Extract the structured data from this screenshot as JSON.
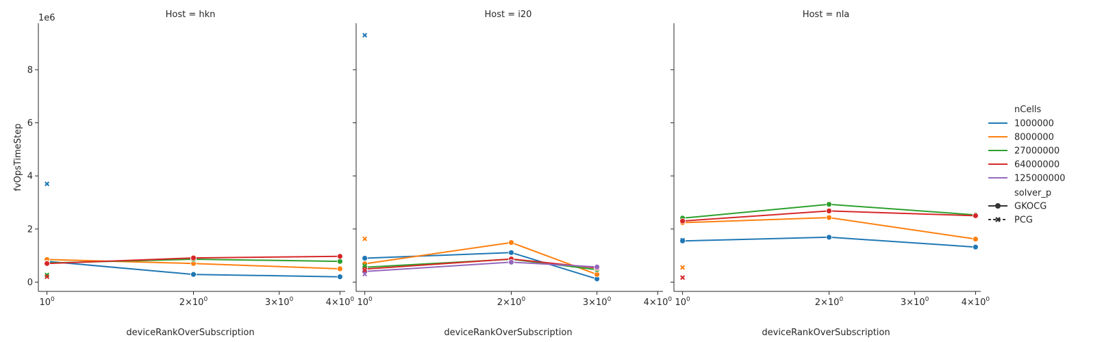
{
  "figure": {
    "offset_label": "1e6",
    "ylabel": "fvOpsTimeStep",
    "xlabel": "deviceRankOverSubscription"
  },
  "legend": {
    "hue_title": "nCells",
    "style_title": "solver_p",
    "hue_entries": [
      {
        "label": "1000000",
        "color": "#1f77b4"
      },
      {
        "label": "8000000",
        "color": "#ff7f0e"
      },
      {
        "label": "27000000",
        "color": "#2ca02c"
      },
      {
        "label": "64000000",
        "color": "#d62728"
      },
      {
        "label": "125000000",
        "color": "#9467bd"
      }
    ],
    "style_entries": [
      {
        "label": "GKOCG",
        "marker": "circle"
      },
      {
        "label": "PCG",
        "marker": "x"
      }
    ]
  },
  "chart_data": [
    {
      "type": "line",
      "title": "Host = hkn",
      "xscale": "log",
      "xlim": [
        0.96,
        4.1
      ],
      "ylim": [
        -0.35,
        9.75
      ],
      "y_unit_multiplier": "1e6",
      "xticks": [
        {
          "value": 1,
          "base": "10",
          "exp": "0"
        },
        {
          "value": 2,
          "base": "2×10",
          "exp": "0"
        },
        {
          "value": 3,
          "base": "3×10",
          "exp": "0"
        },
        {
          "value": 4,
          "base": "4×10",
          "exp": "0"
        }
      ],
      "yticks": [
        "0",
        "2",
        "4",
        "6",
        "8"
      ],
      "series": [
        {
          "name": "1000000",
          "solver": "GKOCG",
          "color": "#1f77b4",
          "x": [
            1,
            2,
            4
          ],
          "y": [
            0.78,
            0.29,
            0.2
          ]
        },
        {
          "name": "8000000",
          "solver": "GKOCG",
          "color": "#ff7f0e",
          "x": [
            1,
            2,
            4
          ],
          "y": [
            0.85,
            0.7,
            0.5
          ]
        },
        {
          "name": "27000000",
          "solver": "GKOCG",
          "color": "#2ca02c",
          "x": [
            1,
            2,
            4
          ],
          "y": [
            0.72,
            0.86,
            0.78
          ]
        },
        {
          "name": "64000000",
          "solver": "GKOCG",
          "color": "#d62728",
          "x": [
            1,
            2,
            4
          ],
          "y": [
            0.7,
            0.91,
            0.97
          ]
        },
        {
          "name": "1000000",
          "solver": "PCG",
          "color": "#1f77b4",
          "x": [
            1
          ],
          "y": [
            3.7
          ]
        },
        {
          "name": "27000000",
          "solver": "PCG",
          "color": "#2ca02c",
          "x": [
            1
          ],
          "y": [
            0.27
          ]
        },
        {
          "name": "64000000",
          "solver": "PCG",
          "color": "#d62728",
          "x": [
            1
          ],
          "y": [
            0.2
          ]
        }
      ]
    },
    {
      "type": "line",
      "title": "Host = i20",
      "xscale": "log",
      "xlim": [
        0.96,
        4.1
      ],
      "ylim": [
        -0.35,
        9.75
      ],
      "y_unit_multiplier": "1e6",
      "xticks": [
        {
          "value": 1,
          "base": "10",
          "exp": "0"
        },
        {
          "value": 2,
          "base": "2×10",
          "exp": "0"
        },
        {
          "value": 3,
          "base": "3×10",
          "exp": "0"
        },
        {
          "value": 4,
          "base": "4×10",
          "exp": "0"
        }
      ],
      "yticks": [
        "0",
        "2",
        "4",
        "6",
        "8"
      ],
      "series": [
        {
          "name": "1000000",
          "solver": "GKOCG",
          "color": "#1f77b4",
          "x": [
            1,
            2,
            3
          ],
          "y": [
            0.9,
            1.11,
            0.12
          ]
        },
        {
          "name": "8000000",
          "solver": "GKOCG",
          "color": "#ff7f0e",
          "x": [
            1,
            2,
            3
          ],
          "y": [
            0.69,
            1.49,
            0.29
          ]
        },
        {
          "name": "27000000",
          "solver": "GKOCG",
          "color": "#2ca02c",
          "x": [
            1,
            2,
            3
          ],
          "y": [
            0.56,
            0.86,
            0.47
          ]
        },
        {
          "name": "64000000",
          "solver": "GKOCG",
          "color": "#d62728",
          "x": [
            1,
            2,
            3
          ],
          "y": [
            0.49,
            0.87,
            0.53
          ]
        },
        {
          "name": "125000000",
          "solver": "GKOCG",
          "color": "#9467bd",
          "x": [
            1,
            2,
            3
          ],
          "y": [
            0.4,
            0.75,
            0.57
          ]
        },
        {
          "name": "1000000",
          "solver": "PCG",
          "color": "#1f77b4",
          "x": [
            1
          ],
          "y": [
            9.3
          ]
        },
        {
          "name": "8000000",
          "solver": "PCG",
          "color": "#ff7f0e",
          "x": [
            1
          ],
          "y": [
            1.63
          ]
        },
        {
          "name": "27000000",
          "solver": "PCG",
          "color": "#2ca02c",
          "x": [
            1
          ],
          "y": [
            0.62
          ]
        },
        {
          "name": "64000000",
          "solver": "PCG",
          "color": "#d62728",
          "x": [
            1
          ],
          "y": [
            0.44
          ]
        },
        {
          "name": "125000000",
          "solver": "PCG",
          "color": "#9467bd",
          "x": [
            1
          ],
          "y": [
            0.3
          ]
        }
      ]
    },
    {
      "type": "line",
      "title": "Host = nla",
      "xscale": "log",
      "xlim": [
        0.96,
        4.1
      ],
      "ylim": [
        -0.35,
        9.75
      ],
      "y_unit_multiplier": "1e6",
      "xticks": [
        {
          "value": 1,
          "base": "10",
          "exp": "0"
        },
        {
          "value": 2,
          "base": "2×10",
          "exp": "0"
        },
        {
          "value": 3,
          "base": "3×10",
          "exp": "0"
        },
        {
          "value": 4,
          "base": "4×10",
          "exp": "0"
        }
      ],
      "yticks": [
        "0",
        "2",
        "4",
        "6",
        "8"
      ],
      "series": [
        {
          "name": "1000000",
          "solver": "GKOCG",
          "color": "#1f77b4",
          "x": [
            1,
            2,
            4
          ],
          "y": [
            1.55,
            1.69,
            1.32
          ]
        },
        {
          "name": "8000000",
          "solver": "GKOCG",
          "color": "#ff7f0e",
          "x": [
            1,
            2,
            4
          ],
          "y": [
            2.24,
            2.43,
            1.62
          ]
        },
        {
          "name": "27000000",
          "solver": "GKOCG",
          "color": "#2ca02c",
          "x": [
            1,
            2,
            4
          ],
          "y": [
            2.41,
            2.93,
            2.53
          ]
        },
        {
          "name": "64000000",
          "solver": "GKOCG",
          "color": "#d62728",
          "x": [
            1,
            2,
            4
          ],
          "y": [
            2.3,
            2.68,
            2.5
          ]
        },
        {
          "name": "1000000",
          "solver": "PCG",
          "color": "#1f77b4",
          "x": [
            1
          ],
          "y": [
            1.58
          ]
        },
        {
          "name": "8000000",
          "solver": "PCG",
          "color": "#ff7f0e",
          "x": [
            1
          ],
          "y": [
            0.55
          ]
        },
        {
          "name": "64000000",
          "solver": "PCG",
          "color": "#d62728",
          "x": [
            1
          ],
          "y": [
            0.17
          ]
        }
      ]
    }
  ]
}
